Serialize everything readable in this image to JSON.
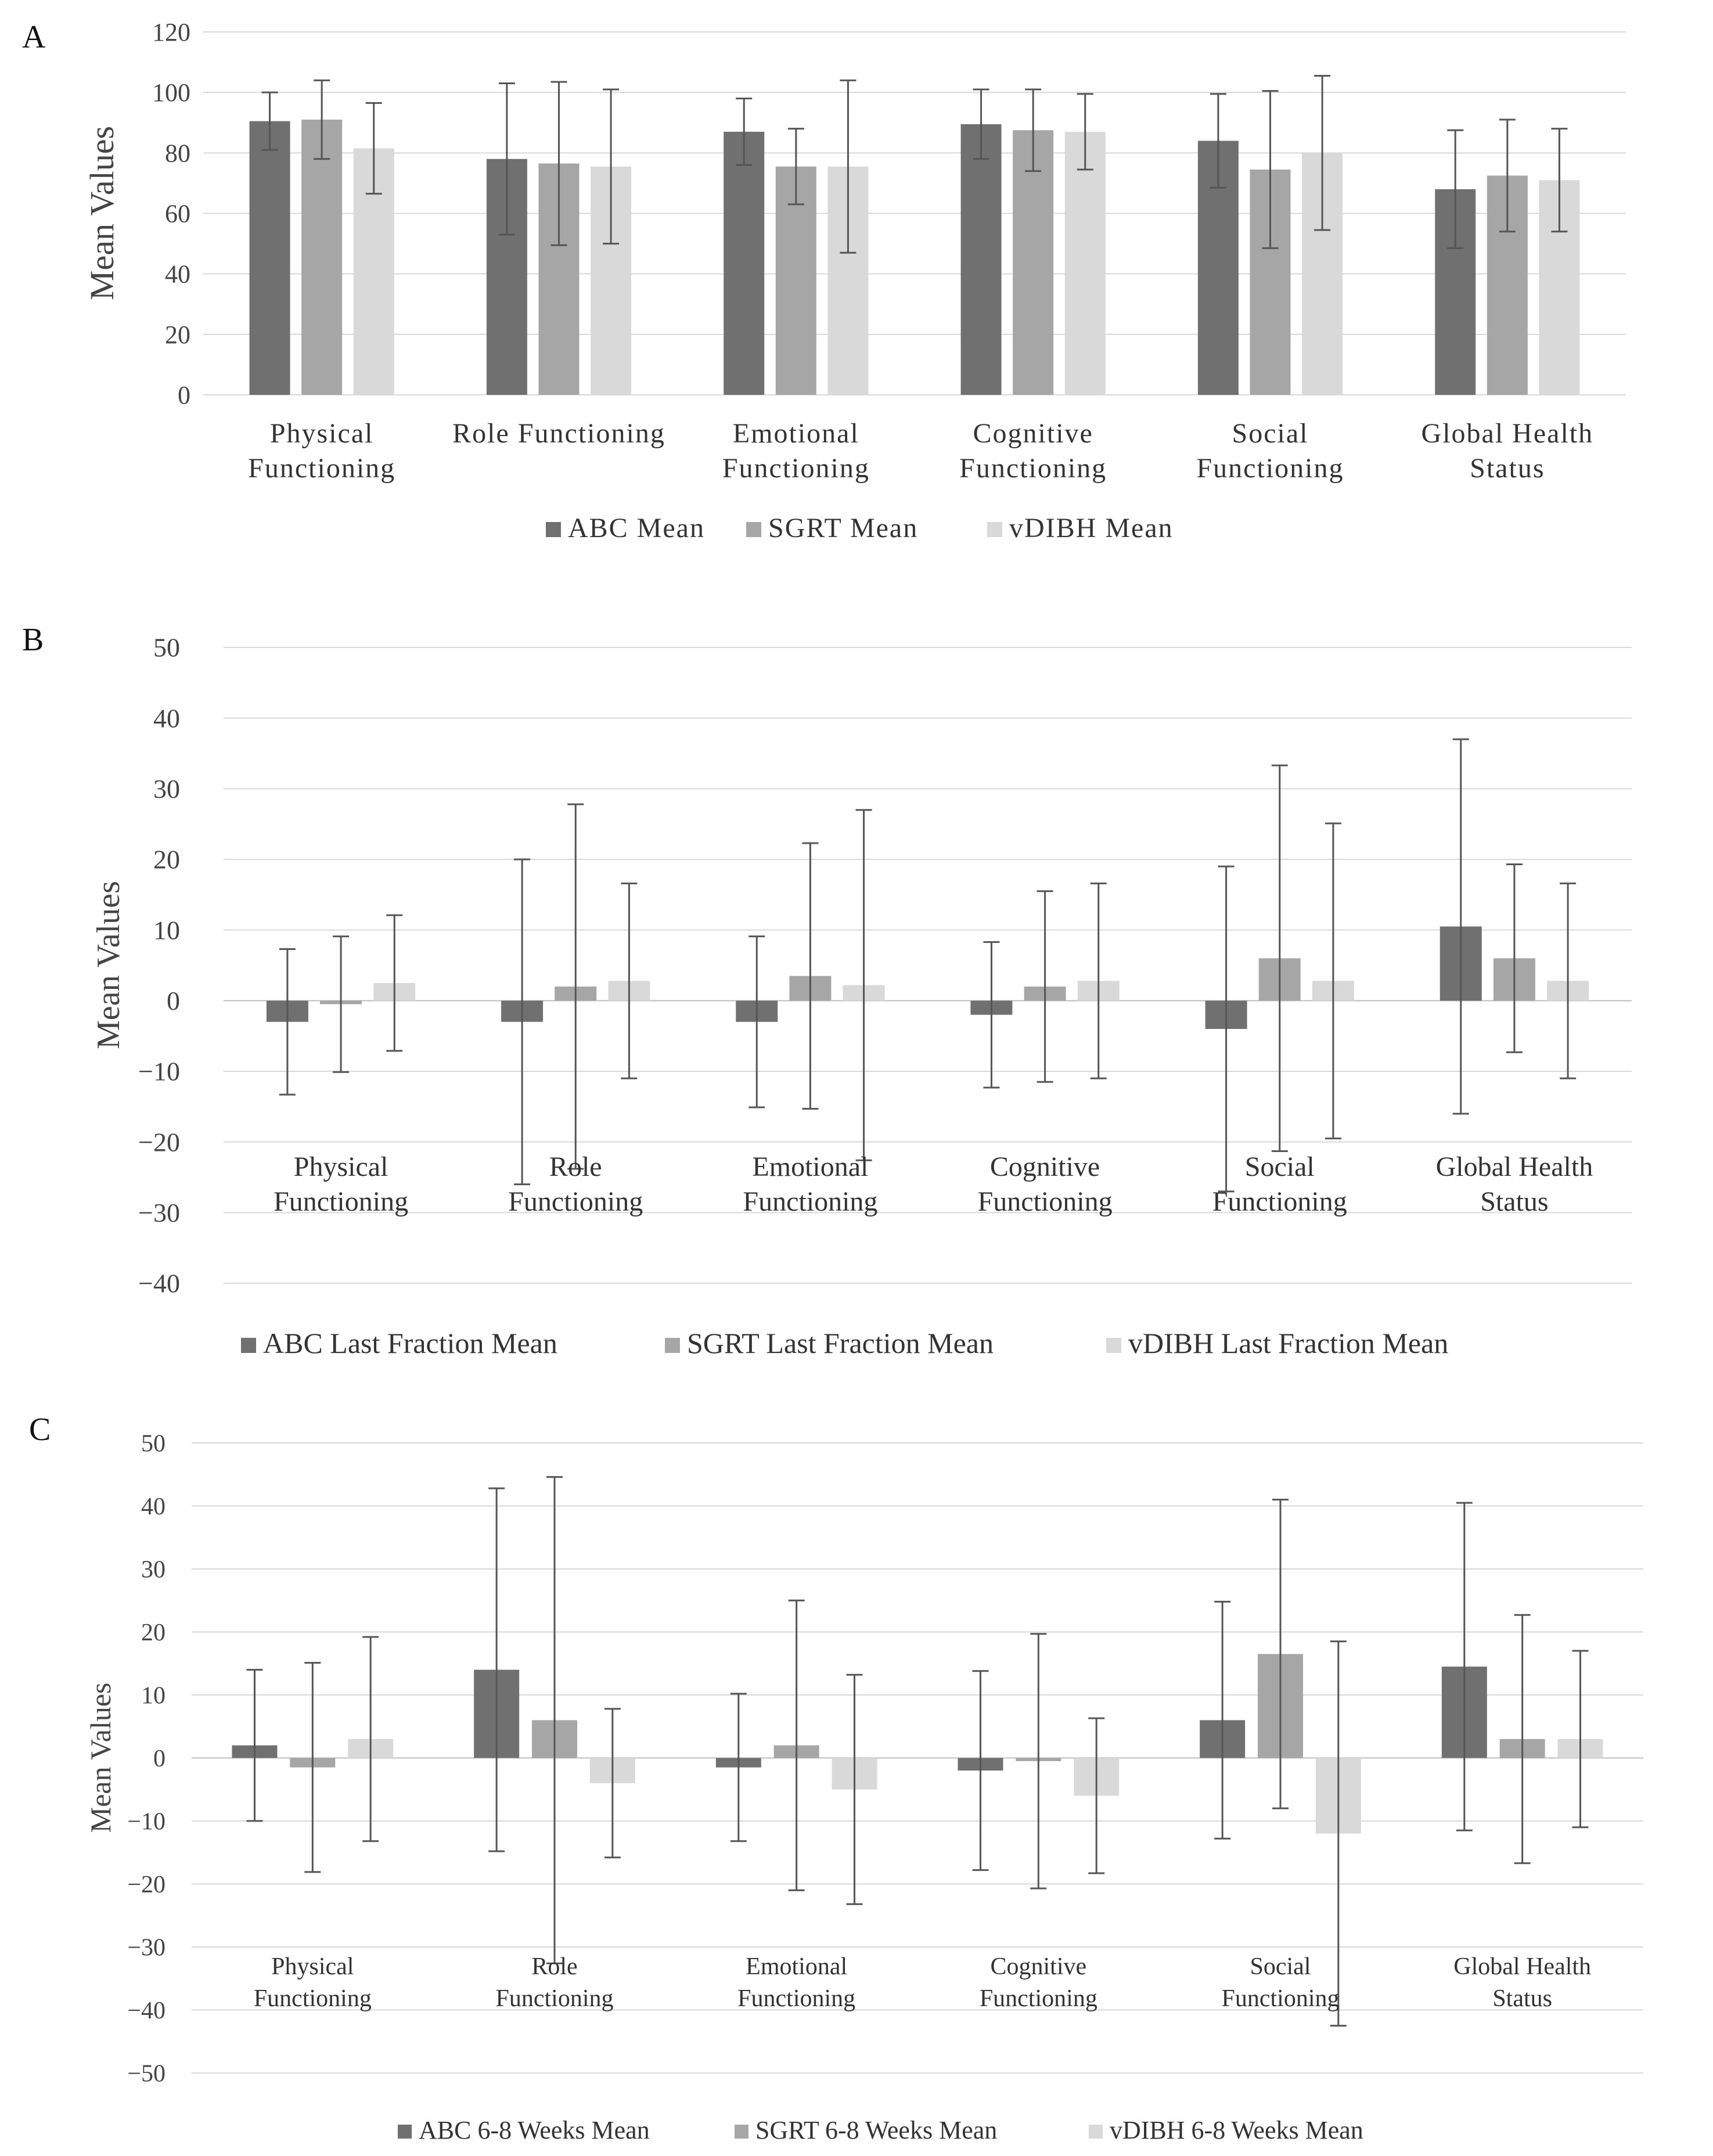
{
  "chart_data": [
    {
      "panel": "A",
      "type": "bar",
      "ylabel": "Mean Values",
      "ylim": [
        0,
        120
      ],
      "yticks": [
        "0",
        "20",
        "40",
        "60",
        "80",
        "100",
        "120"
      ],
      "categories": [
        [
          "Physical",
          "Functioning"
        ],
        [
          "Role Functioning"
        ],
        [
          "Emotional",
          "Functioning"
        ],
        [
          "Cognitive",
          "Functioning"
        ],
        [
          "Social",
          "Functioning"
        ],
        [
          "Global Health",
          "Status"
        ]
      ],
      "series": [
        {
          "name": "ABC Mean",
          "color": "#707070",
          "values": [
            90.5,
            78,
            87,
            89.5,
            84,
            68
          ],
          "errors": [
            9.5,
            25,
            11,
            11.5,
            15.5,
            19.5
          ]
        },
        {
          "name": "SGRT Mean",
          "color": "#a6a6a6",
          "values": [
            91,
            76.5,
            75.5,
            87.5,
            74.5,
            72.5
          ],
          "errors": [
            13,
            27,
            12.5,
            13.5,
            26,
            18.5
          ]
        },
        {
          "name": "vDIBH Mean",
          "color": "#d9d9d9",
          "values": [
            81.5,
            75.5,
            75.5,
            87,
            80,
            71
          ],
          "errors": [
            15,
            25.5,
            28.5,
            12.5,
            25.5,
            17
          ]
        }
      ]
    },
    {
      "panel": "B",
      "type": "bar",
      "ylabel": "Mean Values",
      "ylim": [
        -40,
        50
      ],
      "yticks": [
        "−40",
        "−30",
        "−20",
        "−10",
        "0",
        "10",
        "20",
        "30",
        "40",
        "50"
      ],
      "categories": [
        [
          "Physical",
          "Functioning"
        ],
        [
          "Role",
          "Functioning"
        ],
        [
          "Emotional",
          "Functioning"
        ],
        [
          "Cognitive",
          "Functioning"
        ],
        [
          "Social",
          "Functioning"
        ],
        [
          "Global Health",
          "Status"
        ]
      ],
      "series": [
        {
          "name": "ABC Last Fraction Mean",
          "color": "#707070",
          "values": [
            -3,
            -3,
            -3,
            -2,
            -4,
            10.5
          ],
          "errors": [
            10.3,
            23,
            12.1,
            10.3,
            23,
            26.5
          ]
        },
        {
          "name": "SGRT Last Fraction Mean",
          "color": "#a6a6a6",
          "values": [
            -0.5,
            2,
            3.5,
            2,
            6,
            6
          ],
          "errors": [
            9.6,
            25.8,
            18.8,
            13.5,
            27.3,
            13.3
          ]
        },
        {
          "name": "vDIBH Last Fraction Mean",
          "color": "#d9d9d9",
          "values": [
            2.5,
            2.8,
            2.2,
            2.8,
            2.8,
            2.8
          ],
          "errors": [
            9.6,
            13.8,
            24.8,
            13.8,
            22.3,
            13.8
          ]
        }
      ]
    },
    {
      "panel": "C",
      "type": "bar",
      "ylabel": "Mean Values",
      "ylim": [
        -50,
        50
      ],
      "yticks": [
        "−50",
        "−40",
        "−30",
        "−20",
        "−10",
        "0",
        "10",
        "20",
        "30",
        "40",
        "50"
      ],
      "categories": [
        [
          "Physical",
          "Functioning"
        ],
        [
          "Role",
          "Functioning"
        ],
        [
          "Emotional",
          "Functioning"
        ],
        [
          "Cognitive",
          "Functioning"
        ],
        [
          "Social",
          "Functioning"
        ],
        [
          "Global Health",
          "Status"
        ]
      ],
      "series": [
        {
          "name": "ABC 6-8 Weeks Mean",
          "color": "#707070",
          "values": [
            2,
            14,
            -1.5,
            -2,
            6,
            14.5
          ],
          "errors": [
            12,
            28.8,
            11.7,
            15.8,
            18.8,
            26
          ]
        },
        {
          "name": "SGRT 6-8 Weeks Mean",
          "color": "#a6a6a6",
          "values": [
            -1.5,
            6,
            2,
            -0.5,
            16.5,
            3
          ],
          "errors": [
            16.6,
            38.6,
            23,
            20.2,
            24.5,
            19.7
          ]
        },
        {
          "name": "vDIBH 6-8 Weeks Mean",
          "color": "#d9d9d9",
          "values": [
            3,
            -4,
            -5,
            -6,
            -12,
            3
          ],
          "errors": [
            16.2,
            11.8,
            18.2,
            12.3,
            30.5,
            14
          ]
        }
      ]
    }
  ]
}
